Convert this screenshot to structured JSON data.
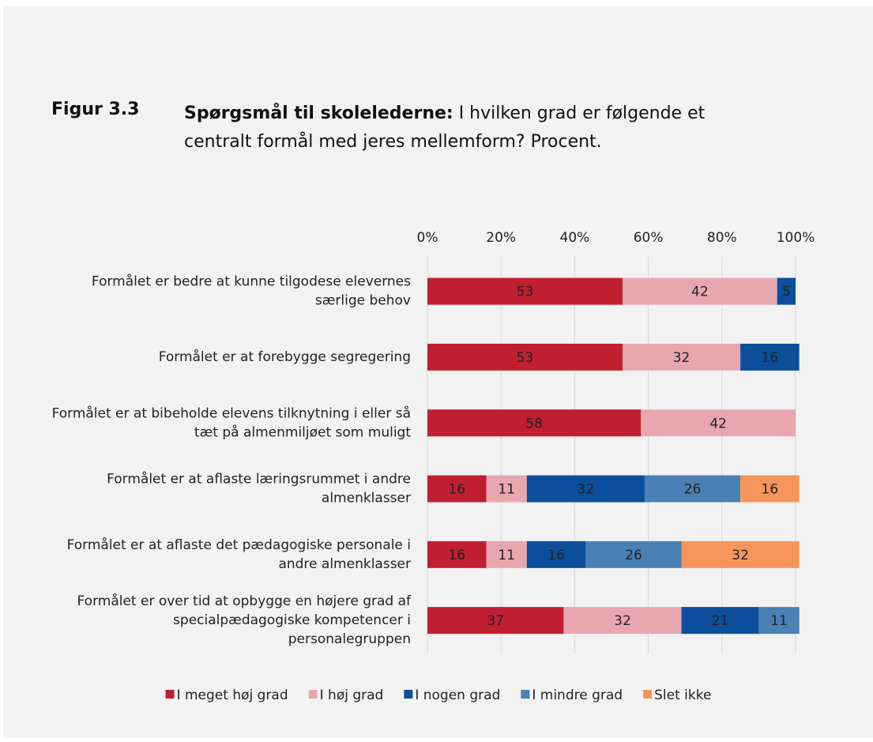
{
  "chart_data": {
    "type": "stacked_barh",
    "figure_label": "Figur 3.3",
    "title_bold": "Spørgsmål til skolelederne:",
    "title": "I hvilken grad er følgende et centralt formål med jeres mellemform? Procent.",
    "categories": [
      "Formålet er bedre at kunne tilgodese elevernes særlige behov",
      "Formålet er at forebygge segregering",
      "Formålet er at bibeholde elevens tilknytning i eller så tæt på almenmiljøet som muligt",
      "Formålet er at aflaste læringsrummet i andre almenklasser",
      "Formålet er at aflaste det pædagogiske personale i andre almenklasser",
      "Formålet er over tid at opbygge en højere grad af specialpædagogiske kompetencer i personalegruppen"
    ],
    "series": [
      {
        "name": "I meget høj grad",
        "color": "#c01f30",
        "label_color": "#ffffff",
        "values": [
          53,
          53,
          58,
          16,
          16,
          37
        ]
      },
      {
        "name": "I høj grad",
        "color": "#e8a7af",
        "label_color": "#222222",
        "values": [
          42,
          32,
          42,
          11,
          11,
          32
        ]
      },
      {
        "name": "I nogen grad",
        "color": "#0b4f9c",
        "label_color": "#ffffff",
        "values": [
          5,
          16,
          null,
          32,
          16,
          21
        ]
      },
      {
        "name": "I mindre grad",
        "color": "#4a80b5",
        "label_color": "#222222",
        "values": [
          null,
          null,
          null,
          26,
          26,
          11
        ]
      },
      {
        "name": "Slet ikke",
        "color": "#f5955b",
        "label_color": "#222222",
        "values": [
          null,
          null,
          null,
          16,
          32,
          null
        ]
      }
    ],
    "xlim": [
      0,
      100
    ],
    "xticks": [
      {
        "value": 0,
        "label": "0%"
      },
      {
        "value": 20,
        "label": "20%"
      },
      {
        "value": 40,
        "label": "40%"
      },
      {
        "value": 60,
        "label": "60%"
      },
      {
        "value": 80,
        "label": "80%"
      },
      {
        "value": 100,
        "label": "100%"
      }
    ],
    "grid": true,
    "legend": "bottom"
  }
}
